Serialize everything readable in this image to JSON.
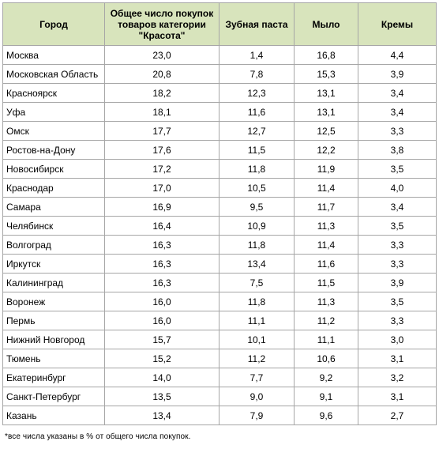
{
  "table": {
    "columns": [
      "Город",
      "Общее число покупок товаров категории \"Красота\"",
      "Зубная паста",
      "Мыло",
      "Кремы"
    ],
    "rows": [
      [
        "Москва",
        "23,0",
        "1,4",
        "16,8",
        "4,4"
      ],
      [
        "Московская Область",
        "20,8",
        "7,8",
        "15,3",
        "3,9"
      ],
      [
        "Красноярск",
        "18,2",
        "12,3",
        "13,1",
        "3,4"
      ],
      [
        "Уфа",
        "18,1",
        "11,6",
        "13,1",
        "3,4"
      ],
      [
        "Омск",
        "17,7",
        "12,7",
        "12,5",
        "3,3"
      ],
      [
        "Ростов-на-Дону",
        "17,6",
        "11,5",
        "12,2",
        "3,8"
      ],
      [
        "Новосибирск",
        "17,2",
        "11,8",
        "11,9",
        "3,5"
      ],
      [
        "Краснодар",
        "17,0",
        "10,5",
        "11,4",
        "4,0"
      ],
      [
        "Самара",
        "16,9",
        "9,5",
        "11,7",
        "3,4"
      ],
      [
        "Челябинск",
        "16,4",
        "10,9",
        "11,3",
        "3,5"
      ],
      [
        "Волгоград",
        "16,3",
        "11,8",
        "11,4",
        "3,3"
      ],
      [
        "Иркутск",
        "16,3",
        "13,4",
        "11,6",
        "3,3"
      ],
      [
        "Калининград",
        "16,3",
        "7,5",
        "11,5",
        "3,9"
      ],
      [
        "Воронеж",
        "16,0",
        "11,8",
        "11,3",
        "3,5"
      ],
      [
        "Пермь",
        "16,0",
        "11,1",
        "11,2",
        "3,3"
      ],
      [
        "Нижний Новгород",
        "15,7",
        "10,1",
        "11,1",
        "3,0"
      ],
      [
        "Тюмень",
        "15,2",
        "11,2",
        "10,6",
        "3,1"
      ],
      [
        "Екатеринбург",
        "14,0",
        "7,7",
        "9,2",
        "3,2"
      ],
      [
        "Санкт-Петербург",
        "13,5",
        "9,0",
        "9,1",
        "3,1"
      ],
      [
        "Казань",
        "13,4",
        "7,9",
        "9,6",
        "2,7"
      ]
    ]
  },
  "footnote": "*все числа указаны в % от общего числа покупок.",
  "colors": {
    "header_background": "#d8e4bc",
    "border": "#a6a6a6"
  }
}
